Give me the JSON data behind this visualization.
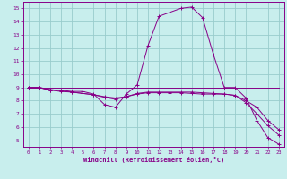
{
  "xlabel": "Windchill (Refroidissement éolien,°C)",
  "xlim": [
    -0.5,
    23.5
  ],
  "ylim": [
    4.5,
    15.5
  ],
  "xticks": [
    0,
    1,
    2,
    3,
    4,
    5,
    6,
    7,
    8,
    9,
    10,
    11,
    12,
    13,
    14,
    15,
    16,
    17,
    18,
    19,
    20,
    21,
    22,
    23
  ],
  "yticks": [
    5,
    6,
    7,
    8,
    9,
    10,
    11,
    12,
    13,
    14,
    15
  ],
  "bg_color": "#c8eeed",
  "line_color": "#880088",
  "grid_color": "#99cccc",
  "series": [
    {
      "x": [
        0,
        1,
        2,
        3,
        4,
        5,
        6,
        7,
        8,
        9,
        10,
        11,
        12,
        13,
        14,
        15,
        16,
        17,
        18,
        19,
        20,
        21,
        22,
        23
      ],
      "y": [
        9.0,
        9.0,
        8.8,
        8.8,
        8.7,
        8.7,
        8.5,
        7.7,
        7.5,
        8.5,
        9.2,
        12.2,
        14.4,
        14.7,
        15.0,
        15.1,
        14.3,
        11.5,
        9.0,
        9.0,
        8.2,
        6.5,
        5.2,
        4.7
      ],
      "marker": true
    },
    {
      "x": [
        0,
        1,
        2,
        3,
        4,
        5,
        6,
        7,
        8,
        9,
        10,
        11,
        12,
        13,
        14,
        15,
        16,
        17,
        18,
        19,
        20,
        21,
        22,
        23
      ],
      "y": [
        9.0,
        9.0,
        8.8,
        8.7,
        8.65,
        8.55,
        8.45,
        8.3,
        8.2,
        8.3,
        8.5,
        8.6,
        8.6,
        8.6,
        8.6,
        8.55,
        8.5,
        8.5,
        8.5,
        8.4,
        8.0,
        7.5,
        6.5,
        5.8
      ],
      "marker": true
    },
    {
      "x": [
        0,
        1,
        2,
        3,
        4,
        5,
        6,
        7,
        8,
        9,
        10,
        11,
        12,
        13,
        14,
        15,
        16,
        17,
        18,
        19,
        20,
        21,
        22,
        23
      ],
      "y": [
        9.0,
        9.0,
        8.85,
        8.75,
        8.65,
        8.55,
        8.45,
        8.25,
        8.1,
        8.3,
        8.55,
        8.65,
        8.65,
        8.65,
        8.65,
        8.65,
        8.6,
        8.55,
        8.5,
        8.4,
        7.85,
        7.0,
        6.1,
        5.4
      ],
      "marker": true
    },
    {
      "x": [
        0,
        23
      ],
      "y": [
        9.0,
        9.0
      ],
      "marker": false
    }
  ]
}
